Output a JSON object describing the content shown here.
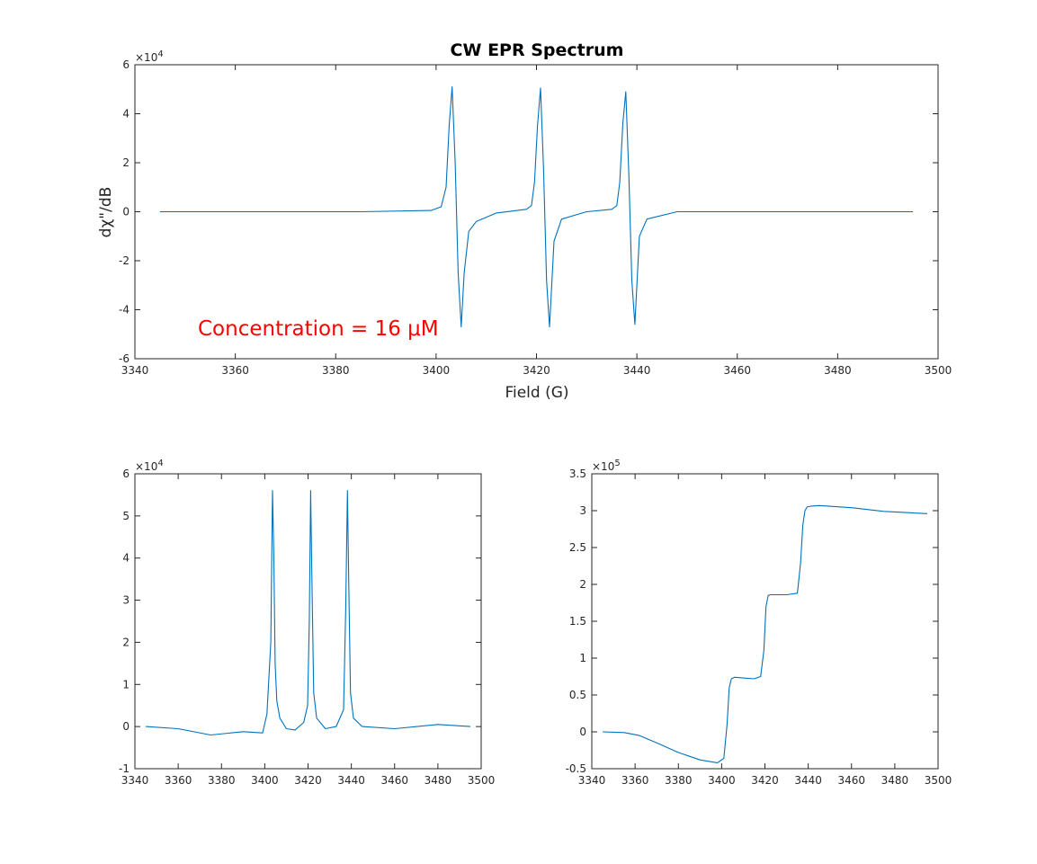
{
  "chart_data": [
    {
      "type": "line",
      "title": "CW EPR Spectrum",
      "xlabel": "Field (G)",
      "ylabel": "dχ\"/dB",
      "exponent_label": "×10^4",
      "xlim": [
        3340,
        3500
      ],
      "ylim": [
        -6,
        6
      ],
      "xticks": [
        "3340",
        "3360",
        "3380",
        "3400",
        "3420",
        "3440",
        "3460",
        "3480",
        "3500"
      ],
      "yticks": [
        "-6",
        "-4",
        "-2",
        "0",
        "2",
        "4",
        "6"
      ],
      "annotation": "Concentration = 16 μM",
      "series": [
        {
          "x": [
            3345,
            3385,
            3399,
            3401,
            3402,
            3402.6,
            3403.2,
            3403.8,
            3404.4,
            3405.0,
            3405.6,
            3406.5,
            3408,
            3412,
            3418,
            3419,
            3419.6,
            3420.2,
            3420.8,
            3421.4,
            3422.0,
            3422.6,
            3423.5,
            3425,
            3430,
            3435,
            3436,
            3436.6,
            3437.2,
            3437.8,
            3438.4,
            3439.0,
            3439.6,
            3440.5,
            3442,
            3448,
            3495
          ],
          "y": [
            0.0,
            0.0,
            0.05,
            0.2,
            1.0,
            3.5,
            5.1,
            2.0,
            -2.5,
            -4.7,
            -2.5,
            -0.8,
            -0.4,
            -0.05,
            0.1,
            0.25,
            1.2,
            3.5,
            5.05,
            1.8,
            -2.8,
            -4.7,
            -1.2,
            -0.3,
            0.0,
            0.1,
            0.25,
            1.2,
            3.6,
            4.9,
            1.5,
            -2.8,
            -4.6,
            -1.0,
            -0.3,
            0.0,
            0.0
          ]
        }
      ]
    },
    {
      "type": "line",
      "title": "",
      "xlabel": "",
      "ylabel": "",
      "exponent_label": "×10^4",
      "xlim": [
        3340,
        3500
      ],
      "ylim": [
        -1,
        6
      ],
      "xticks": [
        "3340",
        "3360",
        "3380",
        "3400",
        "3420",
        "3440",
        "3460",
        "3480",
        "3500"
      ],
      "yticks": [
        "-1",
        "0",
        "1",
        "2",
        "3",
        "4",
        "5",
        "6"
      ],
      "series": [
        {
          "x": [
            3345,
            3360,
            3375,
            3390,
            3399,
            3401,
            3402.8,
            3403.6,
            3404.2,
            3404.8,
            3405.6,
            3407,
            3410,
            3414,
            3418,
            3419.8,
            3420.6,
            3421.2,
            3421.8,
            3422.6,
            3424,
            3428,
            3433,
            3436.4,
            3437.4,
            3438.2,
            3438.8,
            3439.6,
            3441,
            3445,
            3460,
            3480,
            3495
          ],
          "y": [
            0.0,
            -0.05,
            -0.2,
            -0.12,
            -0.15,
            0.3,
            2.0,
            5.6,
            4.0,
            1.5,
            0.6,
            0.2,
            -0.05,
            -0.08,
            0.1,
            0.5,
            2.5,
            5.6,
            3.5,
            0.8,
            0.2,
            -0.05,
            0.0,
            0.4,
            2.8,
            5.6,
            3.5,
            0.8,
            0.2,
            0.0,
            -0.05,
            0.05,
            0.0
          ]
        }
      ]
    },
    {
      "type": "line",
      "title": "",
      "xlabel": "",
      "ylabel": "",
      "exponent_label": "×10^5",
      "xlim": [
        3340,
        3500
      ],
      "ylim": [
        -0.5,
        3.5
      ],
      "xticks": [
        "3340",
        "3360",
        "3380",
        "3400",
        "3420",
        "3440",
        "3460",
        "3480",
        "3500"
      ],
      "yticks": [
        "-0.5",
        "0",
        "0.5",
        "1",
        "1.5",
        "2",
        "2.5",
        "3",
        "3.5"
      ],
      "series": [
        {
          "x": [
            3345,
            3355,
            3362,
            3370,
            3380,
            3390,
            3398,
            3401,
            3402.5,
            3403.5,
            3404.5,
            3406,
            3410,
            3415,
            3418,
            3419.5,
            3420.5,
            3421.5,
            3422.5,
            3425,
            3430,
            3435,
            3436.5,
            3437.5,
            3438.5,
            3439.5,
            3441,
            3445,
            3460,
            3475,
            3495
          ],
          "y": [
            0.0,
            -0.01,
            -0.05,
            -0.15,
            -0.28,
            -0.38,
            -0.42,
            -0.36,
            0.1,
            0.6,
            0.72,
            0.74,
            0.73,
            0.72,
            0.75,
            1.1,
            1.7,
            1.85,
            1.86,
            1.86,
            1.86,
            1.88,
            2.3,
            2.8,
            3.0,
            3.05,
            3.06,
            3.07,
            3.04,
            2.99,
            2.96
          ]
        }
      ]
    }
  ],
  "colors": {
    "trace": "#0072bd",
    "annotation": "#ff0000",
    "axes": "#262626"
  }
}
